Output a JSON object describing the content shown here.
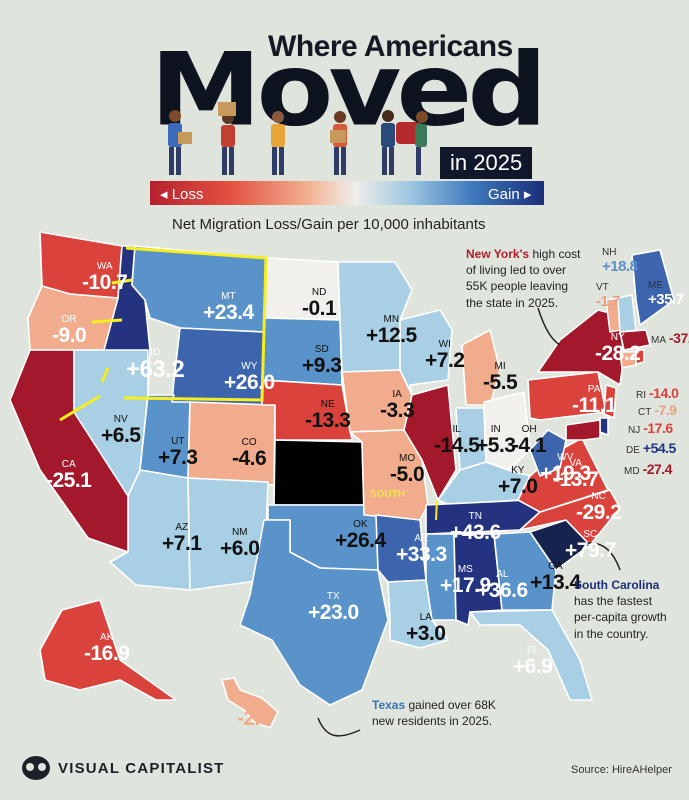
{
  "title": {
    "line1": "Where Americans",
    "line2": "Moved",
    "line3": "in 2025"
  },
  "legend": {
    "loss": "◂ Loss",
    "gain": "Gain ▸"
  },
  "subtitle": "Net Migration Loss/Gain per 10,000 inhabitants",
  "colors": {
    "strong_loss": "#a3182b",
    "loss": "#d9433c",
    "mild_loss": "#f0ac8c",
    "neutral": "#f1f0ec",
    "mild_gain": "#a9cfe4",
    "gain": "#5a93c9",
    "strong_gain": "#24337f",
    "annotation": "#f7ee1f"
  },
  "states": [
    {
      "abbr": "WA",
      "value": "-10.7"
    },
    {
      "abbr": "OR",
      "value": "-9.0"
    },
    {
      "abbr": "CA",
      "value": "-25.1"
    },
    {
      "abbr": "ID",
      "value": "+63.2"
    },
    {
      "abbr": "MT",
      "value": "+23.4"
    },
    {
      "abbr": "WY",
      "value": "+26.0"
    },
    {
      "abbr": "NV",
      "value": "+6.5"
    },
    {
      "abbr": "UT",
      "value": "+7.3"
    },
    {
      "abbr": "AZ",
      "value": "+7.1"
    },
    {
      "abbr": "CO",
      "value": "-4.6"
    },
    {
      "abbr": "NM",
      "value": "+6.0"
    },
    {
      "abbr": "ND",
      "value": "-0.1"
    },
    {
      "abbr": "SD",
      "value": "+9.3"
    },
    {
      "abbr": "NE",
      "value": "-13.3"
    },
    {
      "abbr": "OK",
      "value": "+26.4"
    },
    {
      "abbr": "TX",
      "value": "+23.0"
    },
    {
      "abbr": "MN",
      "value": "+12.5"
    },
    {
      "abbr": "IA",
      "value": "-3.3"
    },
    {
      "abbr": "MO",
      "value": "-5.0"
    },
    {
      "abbr": "AR",
      "value": "+33.3"
    },
    {
      "abbr": "LA",
      "value": "+3.0"
    },
    {
      "abbr": "WI",
      "value": "+7.2"
    },
    {
      "abbr": "IL",
      "value": "-14.5"
    },
    {
      "abbr": "MI",
      "value": "-5.5"
    },
    {
      "abbr": "IN",
      "value": "+5.3"
    },
    {
      "abbr": "OH",
      "value": "-4.1"
    },
    {
      "abbr": "KY",
      "value": "+7.0"
    },
    {
      "abbr": "TN",
      "value": "+43.6"
    },
    {
      "abbr": "MS",
      "value": "+17.9"
    },
    {
      "abbr": "AL",
      "value": "+36.6"
    },
    {
      "abbr": "GA",
      "value": "+13.4"
    },
    {
      "abbr": "FL",
      "value": "+6.9"
    },
    {
      "abbr": "SC",
      "value": "+79.7"
    },
    {
      "abbr": "NC",
      "value": "-29.2"
    },
    {
      "abbr": "VA",
      "value": "-13.7"
    },
    {
      "abbr": "WV",
      "value": "+19.3"
    },
    {
      "abbr": "PA",
      "value": "-11.1"
    },
    {
      "abbr": "NY",
      "value": "-28.2"
    },
    {
      "abbr": "VT",
      "value": "-1.7"
    },
    {
      "abbr": "NH",
      "value": "+18.8"
    },
    {
      "abbr": "ME",
      "value": "+35.7"
    },
    {
      "abbr": "MA",
      "value": "-37.9"
    },
    {
      "abbr": "RI",
      "value": "-14.0"
    },
    {
      "abbr": "CT",
      "value": "-7.9"
    },
    {
      "abbr": "NJ",
      "value": "-17.6"
    },
    {
      "abbr": "DE",
      "value": "+54.5"
    },
    {
      "abbr": "MD",
      "value": "-27.4"
    },
    {
      "abbr": "AK",
      "value": "-16.9"
    },
    {
      "abbr": "HI",
      "value": "-2.3"
    }
  ],
  "annotations": {
    "ny_bold": "New York's",
    "ny_text": " high cost of living led to over 55K people leaving the state in 2025.",
    "sc_bold": "South Carolina",
    "sc_text": " has the fastest per-capita growth in the country.",
    "tx_bold": "Texas",
    "tx_text": " gained over 68K new residents in 2025.",
    "south": "SOUTH"
  },
  "footer": {
    "brand": "VISUAL CAPITALIST",
    "source": "Source: HireAHelper"
  }
}
